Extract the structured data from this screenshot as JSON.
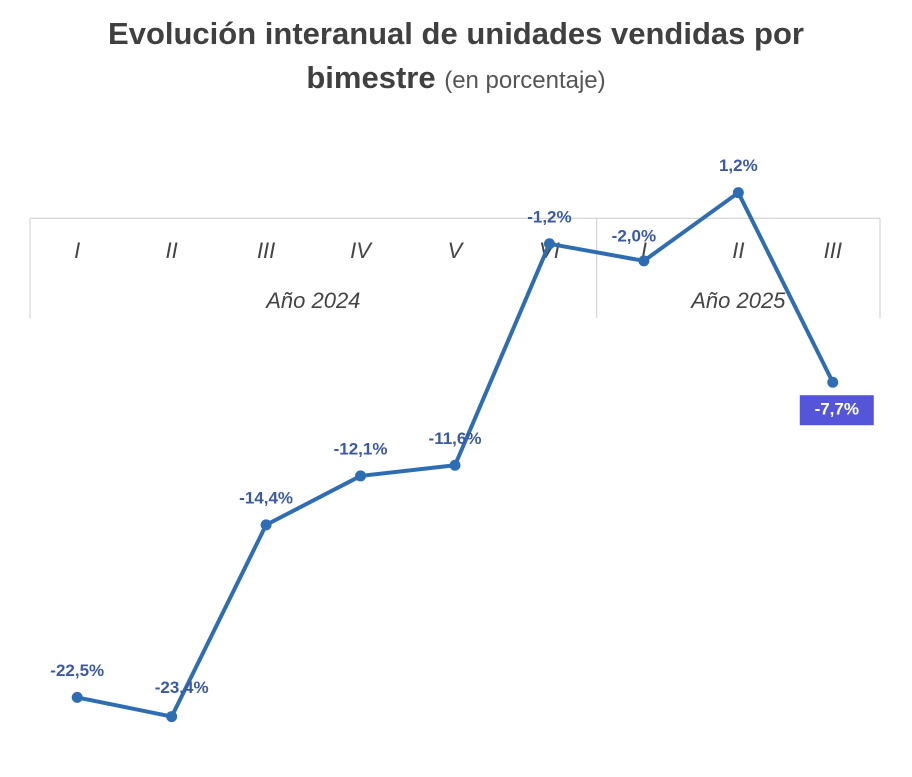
{
  "chart_data": {
    "type": "line",
    "title": "Evolución interanual de unidades vendidas por bimestre",
    "subtitle": "(en porcentaje)",
    "groups": [
      {
        "name": "Año 2024",
        "categories": [
          "I",
          "II",
          "III",
          "IV",
          "V",
          "VI"
        ]
      },
      {
        "name": "Año 2025",
        "categories": [
          "I",
          "II",
          "III"
        ]
      }
    ],
    "values": [
      -22.5,
      -23.4,
      -14.4,
      -12.1,
      -11.6,
      -1.2,
      -2.0,
      1.2,
      -7.7
    ],
    "value_labels": [
      "-22,5%",
      "-23,4%",
      "-14,4%",
      "-12,1%",
      "-11,6%",
      "-1,2%",
      "-2,0%",
      "1,2%",
      "-7,7%"
    ],
    "color": "#2f6db3",
    "ylim": [
      -24.5,
      2.5
    ]
  }
}
